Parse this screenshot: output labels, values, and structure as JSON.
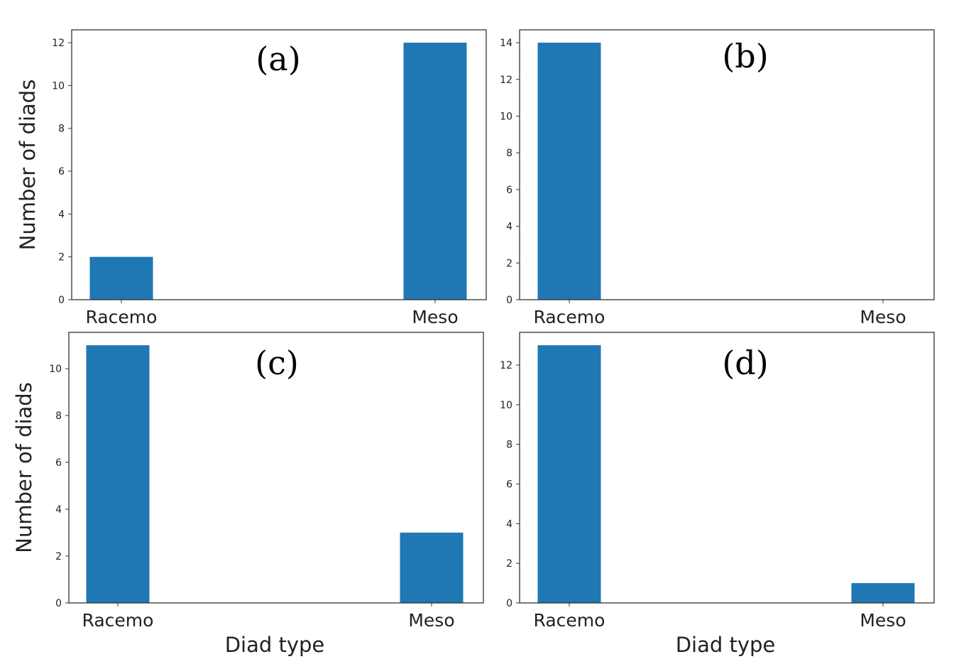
{
  "chart_data": [
    {
      "type": "bar",
      "panel_label": "(a)",
      "categories": [
        "Racemo",
        "Meso"
      ],
      "values": [
        2,
        12
      ],
      "ylabel": "Number of diads",
      "xlabel": "",
      "ylim": [
        0,
        12.6
      ],
      "yticks": [
        0,
        2,
        4,
        6,
        8,
        10,
        12
      ],
      "color": "#1f77b4",
      "grid": false
    },
    {
      "type": "bar",
      "panel_label": "(b)",
      "categories": [
        "Racemo",
        "Meso"
      ],
      "values": [
        14,
        0
      ],
      "ylabel": "",
      "xlabel": "",
      "ylim": [
        0,
        14.7
      ],
      "yticks": [
        0,
        2,
        4,
        6,
        8,
        10,
        12,
        14
      ],
      "color": "#1f77b4",
      "grid": false
    },
    {
      "type": "bar",
      "panel_label": "(c)",
      "categories": [
        "Racemo",
        "Meso"
      ],
      "values": [
        11,
        3
      ],
      "ylabel": "Number of diads",
      "xlabel": "Diad type",
      "ylim": [
        0,
        11.55
      ],
      "yticks": [
        0,
        2,
        4,
        6,
        8,
        10
      ],
      "color": "#1f77b4",
      "grid": false
    },
    {
      "type": "bar",
      "panel_label": "(d)",
      "categories": [
        "Racemo",
        "Meso"
      ],
      "values": [
        13,
        1
      ],
      "ylabel": "",
      "xlabel": "Diad type",
      "ylim": [
        0,
        13.65
      ],
      "yticks": [
        0,
        2,
        4,
        6,
        8,
        10,
        12
      ],
      "color": "#1f77b4",
      "grid": false
    }
  ]
}
